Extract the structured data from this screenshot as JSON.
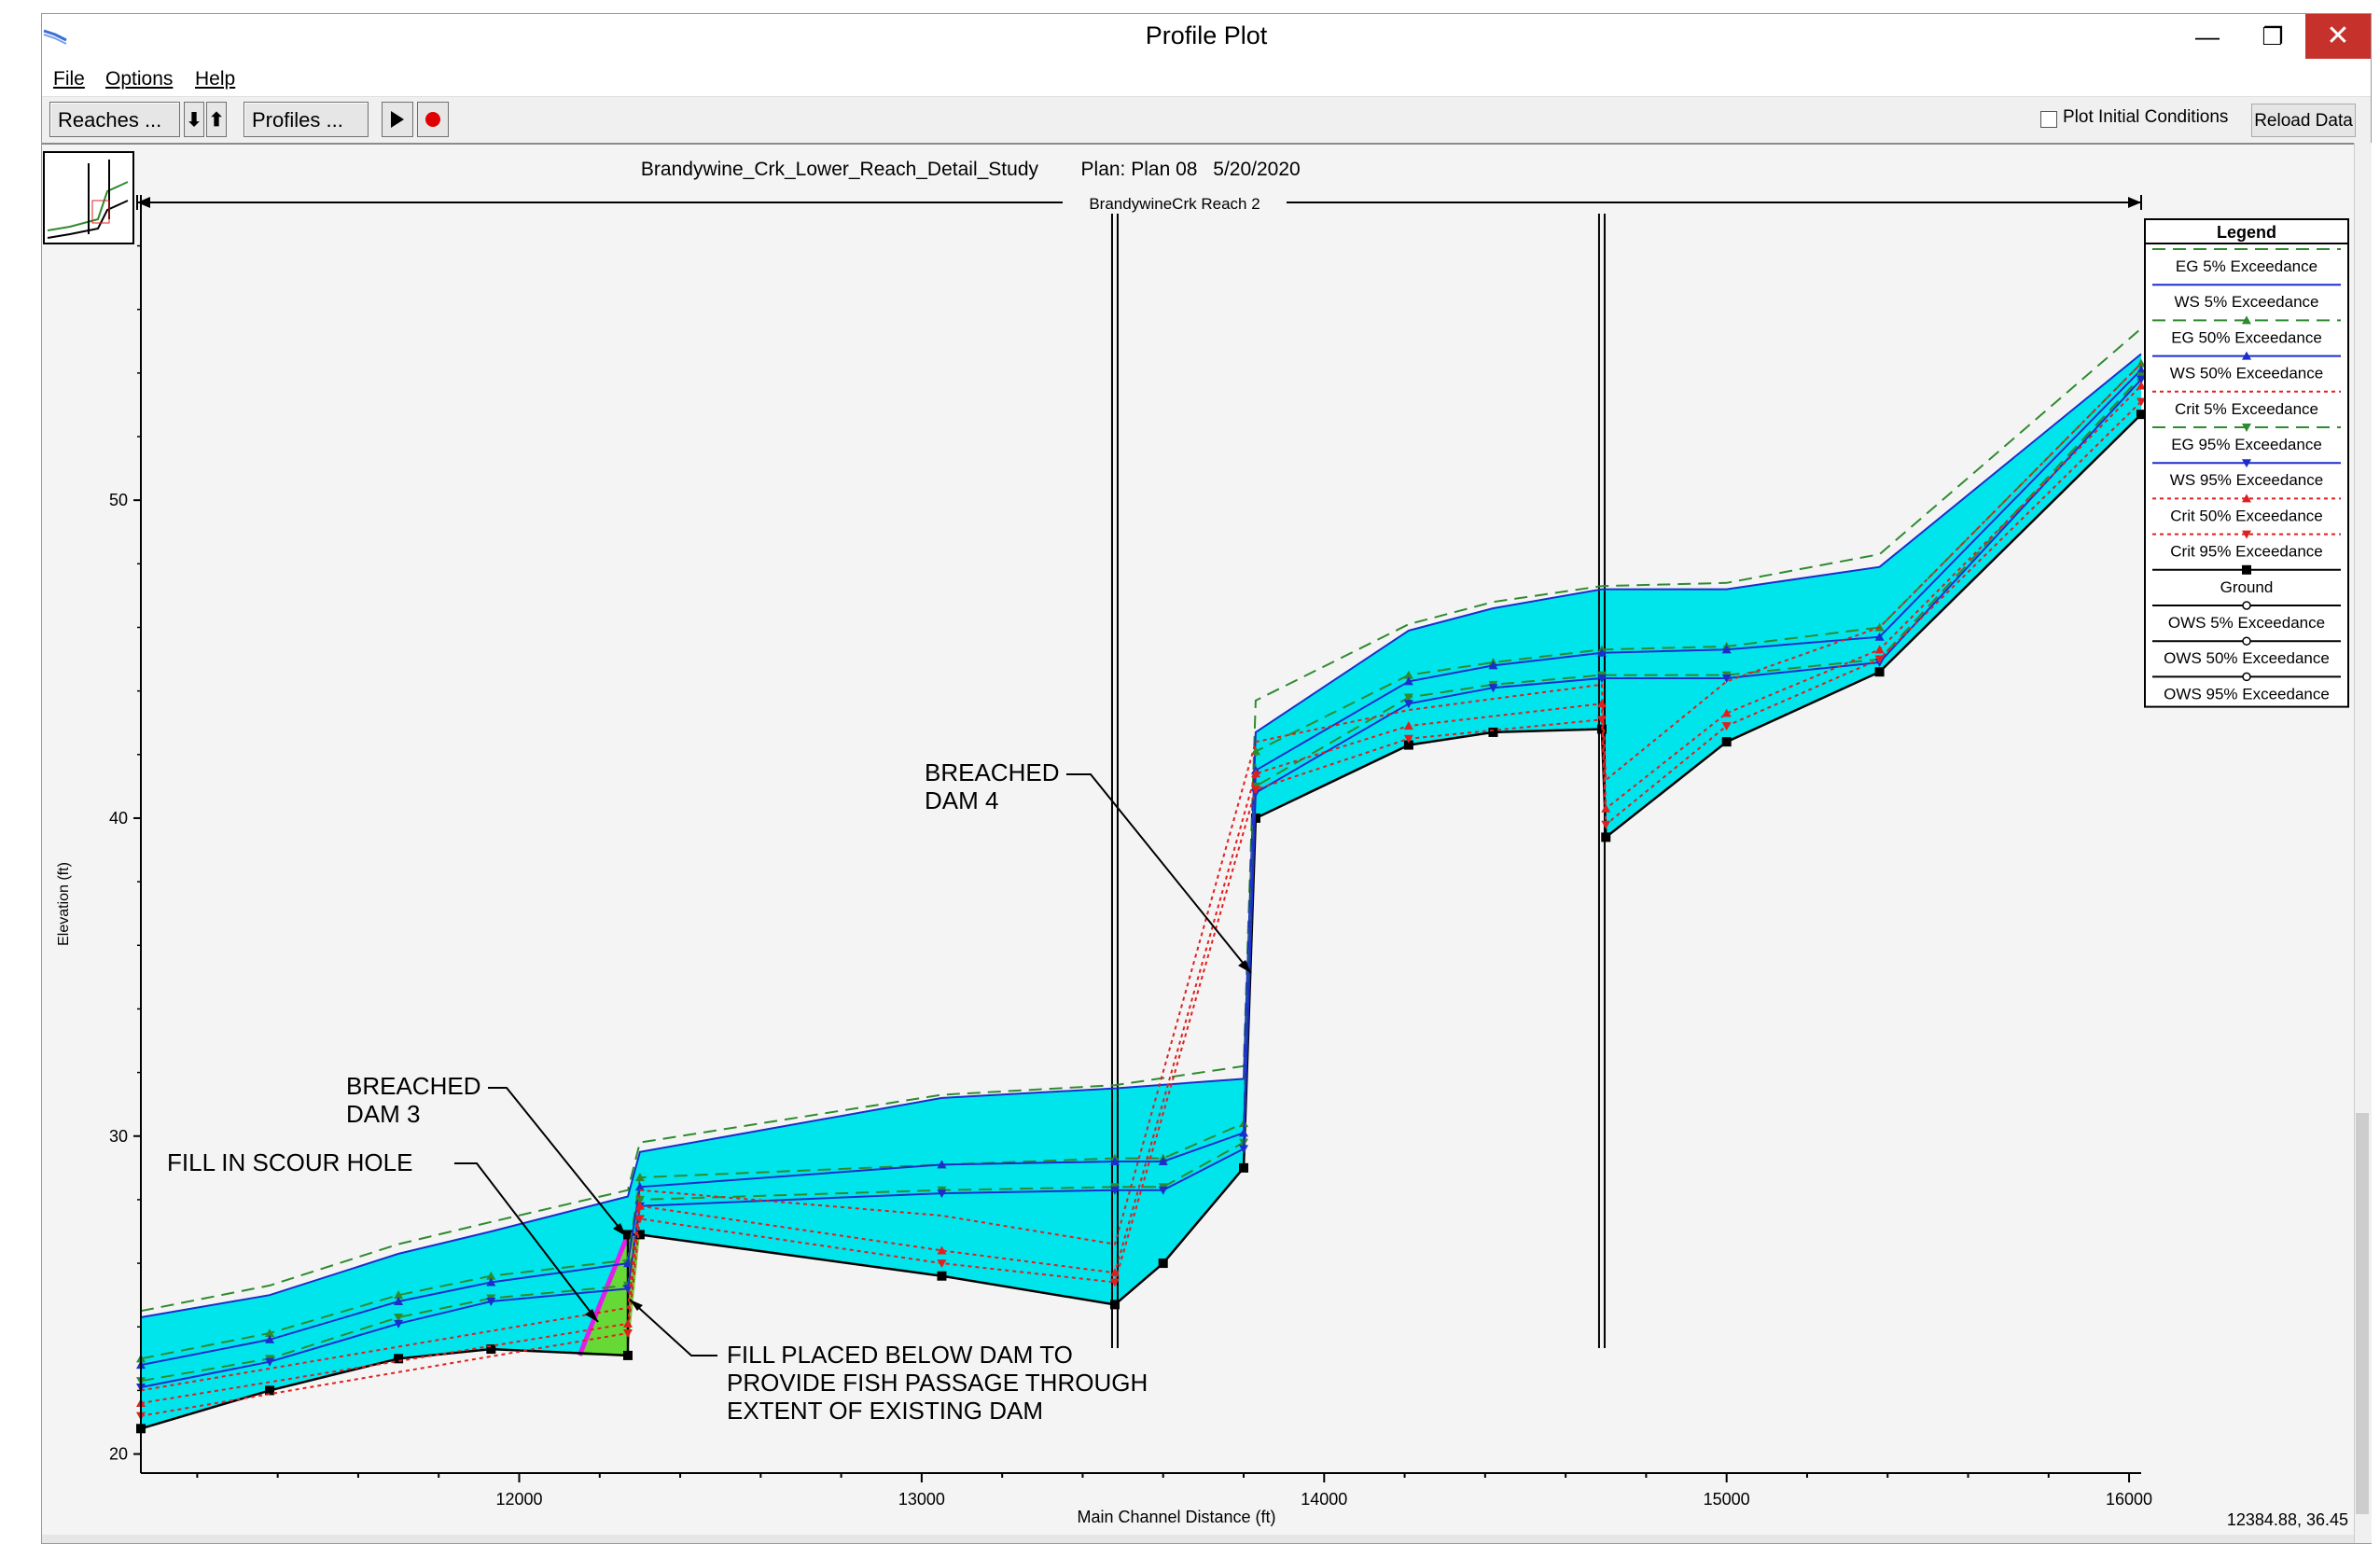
{
  "window": {
    "title": "Profile Plot",
    "minimize_glyph": "—",
    "maximize_glyph": "❐",
    "close_glyph": "✕"
  },
  "menu": [
    "File",
    "Options",
    "Help"
  ],
  "toolbar": {
    "reaches_label": "Reaches ...",
    "profiles_label": "Profiles ...",
    "down_arrow": "⬇",
    "up_arrow": "⬆",
    "plot_initial_label": "Plot Initial Conditions",
    "plot_initial_checked": false,
    "reload_label": "Reload Data"
  },
  "plot": {
    "header_project": "Brandywine_Crk_Lower_Reach_Detail_Study",
    "header_plan": "Plan: Plan 08",
    "header_date": "5/20/2020",
    "reach_label": "BrandywineCrk Reach 2",
    "status": "12384.88, 36.45",
    "annotations": {
      "breached_dam_4": [
        "BREACHED",
        "DAM  4"
      ],
      "breached_dam_3": [
        "BREACHED",
        "DAM  3"
      ],
      "fill_scour": "FILL  IN  SCOUR  HOLE",
      "fill_placed": [
        "FILL  PLACED  BELOW  DAM  TO",
        "PROVIDE  FISH  PASSAGE  THROUGH",
        "EXTENT  OF  EXISTING  DAM"
      ]
    },
    "colors": {
      "water": "#00e5ec",
      "fill": "#66d936",
      "fill_line": "#e020e8",
      "eg": "#2e8b2e",
      "ws": "#1a2ecc",
      "crit": "#e02020",
      "ground": "#000000"
    }
  },
  "legend": {
    "title": "Legend",
    "items": [
      {
        "label": "EG  5% Exceedance",
        "color": "#2e8b2e",
        "dash": "14,8",
        "marker": "none"
      },
      {
        "label": "WS  5% Exceedance",
        "color": "#1a2ecc",
        "dash": "",
        "marker": "none"
      },
      {
        "label": "EG  50% Exceedance",
        "color": "#2e8b2e",
        "dash": "14,8",
        "marker": "tri-up"
      },
      {
        "label": "WS  50% Exceedance",
        "color": "#1a2ecc",
        "dash": "",
        "marker": "tri-up"
      },
      {
        "label": "Crit  5% Exceedance",
        "color": "#e02020",
        "dash": "4,4",
        "marker": "none"
      },
      {
        "label": "EG  95% Exceedance",
        "color": "#2e8b2e",
        "dash": "14,8",
        "marker": "tri-down"
      },
      {
        "label": "WS  95% Exceedance",
        "color": "#1a2ecc",
        "dash": "",
        "marker": "tri-down"
      },
      {
        "label": "Crit  50% Exceedance",
        "color": "#e02020",
        "dash": "4,4",
        "marker": "tri-up"
      },
      {
        "label": "Crit  95% Exceedance",
        "color": "#e02020",
        "dash": "4,4",
        "marker": "tri-down"
      },
      {
        "label": "Ground",
        "color": "#000000",
        "dash": "",
        "marker": "square"
      },
      {
        "label": "OWS  5% Exceedance",
        "color": "#000000",
        "dash": "",
        "marker": "circle"
      },
      {
        "label": "OWS  50% Exceedance",
        "color": "#000000",
        "dash": "",
        "marker": "circle"
      },
      {
        "label": "OWS  95% Exceedance",
        "color": "#000000",
        "dash": "",
        "marker": "circle"
      }
    ]
  },
  "chart_data": {
    "type": "line",
    "title": "Brandywine_Crk_Lower_Reach_Detail_Study    Plan: Plan 08    5/20/2020",
    "xlabel": "Main Channel Distance (ft)",
    "ylabel": "Elevation (ft)",
    "xlim": [
      11060,
      16030
    ],
    "ylim": [
      19.4,
      59.6
    ],
    "xticks": [
      12000,
      13000,
      14000,
      15000,
      16000
    ],
    "yticks": [
      20,
      30,
      40,
      50
    ],
    "structures_x": [
      13480,
      14690
    ],
    "series": [
      {
        "name": "Ground",
        "x": [
          11060,
          11380,
          11700,
          11930,
          12270,
          12270,
          12300,
          13050,
          13480,
          13600,
          13800,
          13830,
          14210,
          14420,
          14690,
          14700,
          15000,
          15380,
          16030
        ],
        "y": [
          20.8,
          22.0,
          23.0,
          23.3,
          23.1,
          26.9,
          26.9,
          25.6,
          24.7,
          26.0,
          29.0,
          40.0,
          42.3,
          42.7,
          42.8,
          39.4,
          42.4,
          44.6,
          52.7
        ]
      },
      {
        "name": "EG  5% Exceedance",
        "x": [
          11060,
          11380,
          11700,
          11930,
          12270,
          12300,
          13050,
          13480,
          13800,
          13830,
          14210,
          14420,
          14690,
          15000,
          15380,
          16030
        ],
        "y": [
          24.5,
          25.3,
          26.6,
          27.3,
          28.3,
          29.8,
          31.3,
          31.6,
          32.2,
          43.7,
          46.1,
          46.8,
          47.3,
          47.4,
          48.3,
          55.4
        ]
      },
      {
        "name": "WS  5% Exceedance",
        "x": [
          11060,
          11380,
          11700,
          11930,
          12270,
          12300,
          13050,
          13480,
          13800,
          13830,
          14210,
          14420,
          14690,
          15000,
          15380,
          16030
        ],
        "y": [
          24.3,
          25.0,
          26.3,
          27.0,
          28.1,
          29.5,
          31.2,
          31.5,
          31.8,
          42.7,
          45.9,
          46.6,
          47.2,
          47.2,
          47.9,
          54.6
        ]
      },
      {
        "name": "EG  50% Exceedance",
        "x": [
          11060,
          11380,
          11700,
          11930,
          12270,
          12300,
          13050,
          13480,
          13600,
          13800,
          13830,
          14210,
          14420,
          14690,
          15000,
          15380,
          16030
        ],
        "y": [
          23.0,
          23.8,
          25.0,
          25.6,
          26.1,
          28.7,
          29.1,
          29.3,
          29.3,
          30.4,
          42.1,
          44.5,
          44.9,
          45.3,
          45.4,
          46.0,
          54.3
        ]
      },
      {
        "name": "WS  50% Exceedance",
        "x": [
          11060,
          11380,
          11700,
          11930,
          12270,
          12300,
          13050,
          13480,
          13600,
          13800,
          13830,
          14210,
          14420,
          14690,
          15000,
          15380,
          16030
        ],
        "y": [
          22.8,
          23.6,
          24.8,
          25.4,
          26.0,
          28.4,
          29.1,
          29.2,
          29.2,
          30.1,
          41.5,
          44.3,
          44.8,
          45.2,
          45.3,
          45.7,
          54.1
        ]
      },
      {
        "name": "EG  95% Exceedance",
        "x": [
          11060,
          11380,
          11700,
          11930,
          12270,
          12300,
          13050,
          13480,
          13600,
          13800,
          13830,
          14210,
          14420,
          14690,
          15000,
          15380,
          16030
        ],
        "y": [
          22.3,
          23.0,
          24.3,
          24.9,
          25.3,
          28.0,
          28.3,
          28.4,
          28.4,
          29.8,
          41.0,
          43.8,
          44.2,
          44.5,
          44.5,
          45.0,
          53.9
        ]
      },
      {
        "name": "WS  95% Exceedance",
        "x": [
          11060,
          11380,
          11700,
          11930,
          12270,
          12300,
          13050,
          13480,
          13600,
          13800,
          13830,
          14210,
          14420,
          14690,
          15000,
          15380,
          16030
        ],
        "y": [
          22.1,
          22.9,
          24.1,
          24.8,
          25.2,
          27.8,
          28.2,
          28.3,
          28.3,
          29.6,
          40.8,
          43.6,
          44.1,
          44.4,
          44.4,
          44.9,
          53.8
        ]
      },
      {
        "name": "Crit  5% Exceedance",
        "x": [
          11060,
          12270,
          12300,
          13050,
          13480,
          13830,
          14210,
          14690,
          14700,
          15000,
          15380,
          16030
        ],
        "y": [
          22.0,
          24.6,
          28.3,
          27.5,
          26.6,
          42.4,
          43.4,
          44.2,
          41.2,
          44.3,
          46.0,
          54.3
        ]
      },
      {
        "name": "Crit  50% Exceedance",
        "x": [
          11060,
          12270,
          12300,
          13050,
          13480,
          13830,
          14210,
          14690,
          14700,
          15000,
          15380,
          16030
        ],
        "y": [
          21.6,
          24.1,
          27.8,
          26.4,
          25.7,
          41.4,
          42.9,
          43.6,
          40.3,
          43.3,
          45.3,
          53.6
        ]
      },
      {
        "name": "Crit  95% Exceedance",
        "x": [
          11060,
          12270,
          12300,
          13050,
          13480,
          13830,
          14210,
          14690,
          14700,
          15000,
          15380,
          16030
        ],
        "y": [
          21.2,
          23.8,
          27.4,
          26.0,
          25.4,
          40.9,
          42.5,
          43.1,
          39.8,
          42.9,
          45.0,
          53.1
        ]
      }
    ]
  }
}
